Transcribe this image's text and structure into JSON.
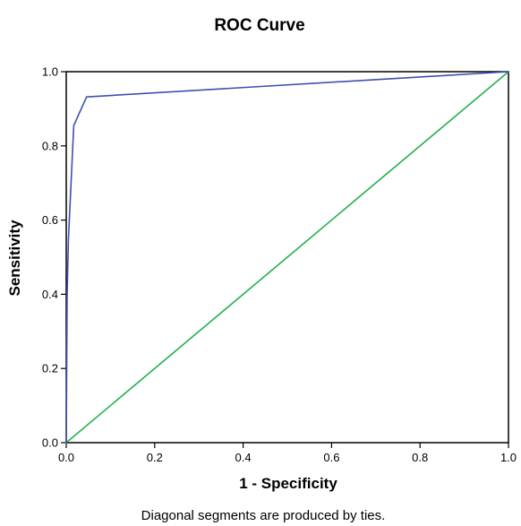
{
  "chart_data": {
    "type": "line",
    "title": "ROC Curve",
    "xlabel": "1 - Specificity",
    "ylabel": "Sensitivity",
    "footnote": "Diagonal segments are produced by ties.",
    "xlim": [
      0.0,
      1.0
    ],
    "ylim": [
      0.0,
      1.0
    ],
    "grid": false,
    "x_ticks": [
      "0.0",
      "0.2",
      "0.4",
      "0.6",
      "0.8",
      "1.0"
    ],
    "y_ticks": [
      "0.0",
      "0.2",
      "0.4",
      "0.6",
      "0.8",
      "1.0"
    ],
    "series": [
      {
        "role": "roc-curve",
        "color": "#3f4fb0",
        "x": [
          0.0,
          0.002,
          0.005,
          0.017,
          0.046,
          1.0
        ],
        "y": [
          0.0,
          0.4,
          0.55,
          0.855,
          0.932,
          1.0
        ]
      },
      {
        "role": "reference-line",
        "color": "#22b14c",
        "x": [
          0.0,
          1.0
        ],
        "y": [
          0.0,
          1.0
        ]
      }
    ]
  }
}
